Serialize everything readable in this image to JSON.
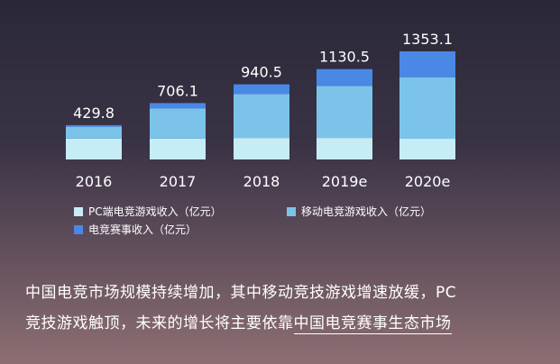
{
  "chart_data": {
    "type": "bar",
    "stacked": true,
    "categories": [
      "2016",
      "2017",
      "2018",
      "2019e",
      "2020e"
    ],
    "totals": [
      429.8,
      706.1,
      940.5,
      1130.5,
      1353.1
    ],
    "total_labels": [
      "429.8",
      "706.1",
      "940.5",
      "1130.5",
      "1353.1"
    ],
    "series": [
      {
        "name": "PC端电竞游戏收入（亿元）",
        "values": [
          260,
          260,
          270,
          270,
          260
        ],
        "color": "#c6ecf6"
      },
      {
        "name": "移动电竞游戏收入（亿元）",
        "values": [
          150,
          380,
          550,
          650,
          770
        ],
        "color": "#7cc3ea"
      },
      {
        "name": "电竞赛事收入（亿元）",
        "values": [
          19.8,
          66.1,
          120.5,
          210.5,
          323.1
        ],
        "color": "#4a88e6"
      }
    ],
    "ylim": [
      0,
      1400
    ],
    "legend_position": "bottom",
    "grid": false
  },
  "caption": {
    "line1": "中国电竞市场规模持续增加，其中移动竞技游戏增速放缓，PC",
    "line2_plain": "竞技游戏触顶，未来的增长将主要依靠",
    "line2_underlined": "中国电竞赛事生态市场"
  }
}
